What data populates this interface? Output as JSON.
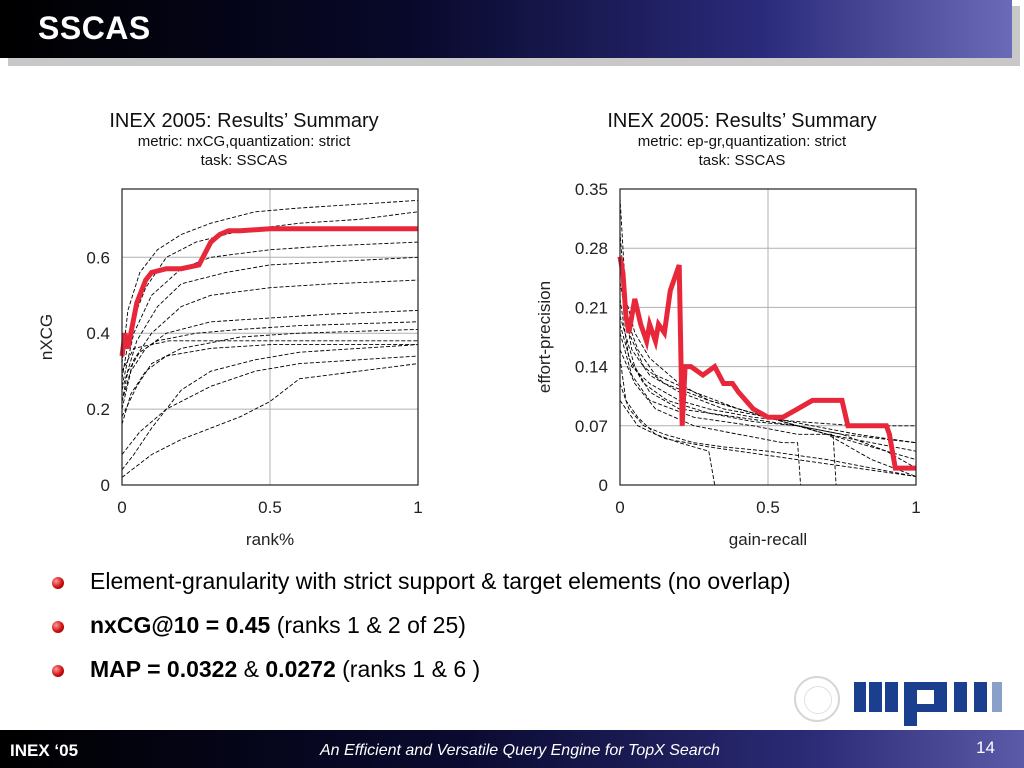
{
  "slide": {
    "title": "SSCAS",
    "footer_left": "INEX ‘05",
    "footer_center": "An Efficient and Versatile Query Engine for TopX Search",
    "page_number": "14"
  },
  "bullets": [
    {
      "parts": [
        {
          "text": "Element-granularity with strict support & target elements (no overlap)",
          "bold": false
        }
      ]
    },
    {
      "parts": [
        {
          "text": "nxCG@10 = 0.45",
          "bold": true
        },
        {
          "text": " (ranks 1 & 2 of 25)",
          "bold": false
        }
      ]
    },
    {
      "parts": [
        {
          "text": "MAP = 0.0322",
          "bold": true
        },
        {
          "text": " & ",
          "bold": false
        },
        {
          "text": "0.0272",
          "bold": true
        },
        {
          "text": " (ranks 1 & 6 )",
          "bold": false
        }
      ]
    }
  ],
  "logo": {
    "text": "mpi",
    "color": "#1a3f8f"
  },
  "colors": {
    "highlight": "#e8283a",
    "runs": "#000000",
    "grid": "#b0b0b0"
  },
  "chart_data": [
    {
      "type": "line",
      "title": "INEX 2005: Results’ Summary",
      "subtitle_1": "metric: nxCG,quantization: strict",
      "subtitle_2": "task: SSCAS",
      "xlabel": "rank%",
      "ylabel": "nXCG",
      "xlim": [
        0,
        1
      ],
      "ylim": [
        0,
        0.78
      ],
      "xticks": [
        0,
        0.5,
        1
      ],
      "xtick_labels": [
        "0",
        "0.5",
        "1"
      ],
      "yticks": [
        0,
        0.2,
        0.4,
        0.6
      ],
      "ytick_labels": [
        "0",
        "0.2",
        "0.4",
        "0.6"
      ],
      "grid": true,
      "highlight_series": {
        "x": [
          0,
          0.01,
          0.02,
          0.05,
          0.08,
          0.1,
          0.15,
          0.2,
          0.26,
          0.3,
          0.33,
          0.36,
          0.4,
          0.5,
          0.6,
          0.7,
          0.8,
          0.9,
          1.0
        ],
        "y": [
          0.34,
          0.4,
          0.36,
          0.48,
          0.54,
          0.56,
          0.57,
          0.57,
          0.58,
          0.64,
          0.66,
          0.67,
          0.67,
          0.675,
          0.675,
          0.675,
          0.675,
          0.675,
          0.675
        ]
      },
      "series": [
        {
          "x": [
            0,
            0.02,
            0.06,
            0.12,
            0.2,
            0.3,
            0.45,
            0.6,
            0.8,
            1.0
          ],
          "y": [
            0.32,
            0.46,
            0.56,
            0.62,
            0.66,
            0.69,
            0.72,
            0.73,
            0.74,
            0.75
          ]
        },
        {
          "x": [
            0,
            0.03,
            0.08,
            0.15,
            0.25,
            0.4,
            0.6,
            0.8,
            1.0
          ],
          "y": [
            0.28,
            0.42,
            0.52,
            0.6,
            0.64,
            0.67,
            0.69,
            0.7,
            0.72
          ]
        },
        {
          "x": [
            0,
            0.04,
            0.1,
            0.2,
            0.3,
            0.5,
            0.7,
            1.0
          ],
          "y": [
            0.26,
            0.4,
            0.5,
            0.57,
            0.6,
            0.62,
            0.63,
            0.64
          ]
        },
        {
          "x": [
            0,
            0.05,
            0.12,
            0.2,
            0.35,
            0.5,
            0.75,
            1.0
          ],
          "y": [
            0.25,
            0.38,
            0.47,
            0.53,
            0.56,
            0.58,
            0.59,
            0.6
          ]
        },
        {
          "x": [
            0,
            0.04,
            0.1,
            0.2,
            0.3,
            0.5,
            0.7,
            1.0
          ],
          "y": [
            0.22,
            0.33,
            0.4,
            0.47,
            0.5,
            0.52,
            0.53,
            0.54
          ]
        },
        {
          "x": [
            0,
            0.03,
            0.08,
            0.15,
            0.3,
            0.5,
            0.7,
            1.0
          ],
          "y": [
            0.2,
            0.3,
            0.36,
            0.4,
            0.43,
            0.44,
            0.45,
            0.46
          ]
        },
        {
          "x": [
            0,
            0.02,
            0.06,
            0.12,
            0.25,
            0.4,
            0.6,
            1.0
          ],
          "y": [
            0.22,
            0.3,
            0.35,
            0.38,
            0.4,
            0.41,
            0.42,
            0.43
          ]
        },
        {
          "x": [
            0,
            0.05,
            0.1,
            0.2,
            0.4,
            0.6,
            1.0
          ],
          "y": [
            0.18,
            0.26,
            0.32,
            0.36,
            0.39,
            0.4,
            0.41
          ]
        },
        {
          "x": [
            0,
            0.04,
            0.1,
            0.16,
            0.3,
            0.5,
            0.8,
            1.0
          ],
          "y": [
            0.3,
            0.36,
            0.37,
            0.38,
            0.38,
            0.38,
            0.38,
            0.38
          ]
        },
        {
          "x": [
            0,
            0.03,
            0.08,
            0.15,
            0.3,
            0.5,
            0.7,
            1.0
          ],
          "y": [
            0.16,
            0.24,
            0.3,
            0.34,
            0.36,
            0.37,
            0.37,
            0.37
          ]
        },
        {
          "x": [
            0,
            0.04,
            0.1,
            0.2,
            0.3,
            0.45,
            0.6,
            0.8,
            1.0
          ],
          "y": [
            0.04,
            0.08,
            0.15,
            0.25,
            0.3,
            0.33,
            0.35,
            0.36,
            0.37
          ]
        },
        {
          "x": [
            0,
            0.05,
            0.1,
            0.2,
            0.3,
            0.4,
            0.5,
            0.6,
            0.8,
            1.0
          ],
          "y": [
            0.02,
            0.05,
            0.08,
            0.12,
            0.15,
            0.18,
            0.22,
            0.28,
            0.3,
            0.32
          ]
        },
        {
          "x": [
            0,
            0.06,
            0.15,
            0.3,
            0.45,
            0.6,
            0.8,
            1.0
          ],
          "y": [
            0.08,
            0.14,
            0.2,
            0.26,
            0.3,
            0.32,
            0.33,
            0.34
          ]
        }
      ]
    },
    {
      "type": "line",
      "title": "INEX 2005: Results’ Summary",
      "subtitle_1": "metric: ep-gr,quantization: strict",
      "subtitle_2": "task: SSCAS",
      "xlabel": "gain-recall",
      "ylabel": "effort-precision",
      "xlim": [
        0,
        1
      ],
      "ylim": [
        0,
        0.35
      ],
      "xticks": [
        0,
        0.5,
        1
      ],
      "xtick_labels": [
        "0",
        "0.5",
        "1"
      ],
      "yticks": [
        0,
        0.07,
        0.14,
        0.21,
        0.28,
        0.35
      ],
      "ytick_labels": [
        "0",
        "0.07",
        "0.14",
        "0.21",
        "0.28",
        "0.35"
      ],
      "grid": true,
      "highlight_series": {
        "x": [
          0,
          0.01,
          0.02,
          0.03,
          0.05,
          0.07,
          0.09,
          0.1,
          0.12,
          0.13,
          0.15,
          0.17,
          0.19,
          0.2,
          0.21,
          0.22,
          0.24,
          0.28,
          0.32,
          0.35,
          0.38,
          0.4,
          0.45,
          0.5,
          0.55,
          0.6,
          0.65,
          0.7,
          0.75,
          0.77,
          0.8,
          0.85,
          0.9,
          0.91,
          0.93,
          0.95,
          1.0
        ],
        "y": [
          0.27,
          0.25,
          0.2,
          0.18,
          0.22,
          0.19,
          0.17,
          0.19,
          0.17,
          0.19,
          0.18,
          0.23,
          0.25,
          0.26,
          0.07,
          0.14,
          0.14,
          0.13,
          0.14,
          0.12,
          0.12,
          0.11,
          0.09,
          0.08,
          0.08,
          0.09,
          0.1,
          0.1,
          0.1,
          0.07,
          0.07,
          0.07,
          0.07,
          0.06,
          0.02,
          0.02,
          0.02
        ]
      },
      "series": [
        {
          "x": [
            0,
            0.02,
            0.05,
            0.1,
            0.2,
            0.3,
            0.5,
            0.7,
            1.0
          ],
          "y": [
            0.34,
            0.22,
            0.18,
            0.15,
            0.12,
            0.1,
            0.08,
            0.06,
            0.04
          ]
        },
        {
          "x": [
            0,
            0.02,
            0.06,
            0.12,
            0.25,
            0.4,
            0.6,
            0.8,
            1.0
          ],
          "y": [
            0.3,
            0.2,
            0.16,
            0.13,
            0.11,
            0.09,
            0.07,
            0.05,
            0.03
          ]
        },
        {
          "x": [
            0,
            0.03,
            0.08,
            0.15,
            0.3,
            0.5,
            0.7,
            0.85,
            1.0
          ],
          "y": [
            0.26,
            0.18,
            0.14,
            0.12,
            0.1,
            0.08,
            0.06,
            0.03,
            0.01
          ]
        },
        {
          "x": [
            0,
            0.04,
            0.1,
            0.2,
            0.35,
            0.5,
            0.65,
            0.8,
            1.0
          ],
          "y": [
            0.24,
            0.16,
            0.13,
            0.11,
            0.09,
            0.08,
            0.07,
            0.06,
            0.05
          ]
        },
        {
          "x": [
            0,
            0.03,
            0.08,
            0.16,
            0.3,
            0.45,
            0.6,
            0.75,
            1.0
          ],
          "y": [
            0.22,
            0.15,
            0.12,
            0.1,
            0.085,
            0.075,
            0.07,
            0.06,
            0.05
          ]
        },
        {
          "x": [
            0,
            0.05,
            0.1,
            0.2,
            0.4,
            0.6,
            0.75,
            0.9,
            1.0
          ],
          "y": [
            0.2,
            0.14,
            0.11,
            0.09,
            0.08,
            0.07,
            0.06,
            0.04,
            0.02
          ]
        },
        {
          "x": [
            0,
            0.04,
            0.1,
            0.25,
            0.45,
            0.6,
            0.72,
            0.73,
            1.0
          ],
          "y": [
            0.18,
            0.13,
            0.1,
            0.08,
            0.07,
            0.06,
            0.06,
            0.0,
            0.0
          ]
        },
        {
          "x": [
            0,
            0.05,
            0.12,
            0.25,
            0.4,
            0.55,
            0.6,
            0.61,
            1.0
          ],
          "y": [
            0.16,
            0.12,
            0.09,
            0.07,
            0.06,
            0.05,
            0.05,
            0.0,
            0.0
          ]
        },
        {
          "x": [
            0,
            0.02,
            0.06,
            0.12,
            0.2,
            0.3,
            0.32,
            1.0
          ],
          "y": [
            0.15,
            0.1,
            0.08,
            0.06,
            0.05,
            0.04,
            0.0,
            0.0
          ]
        },
        {
          "x": [
            0,
            0.03,
            0.08,
            0.15,
            0.25,
            0.35,
            0.5,
            0.7,
            0.85,
            1.0
          ],
          "y": [
            0.12,
            0.09,
            0.07,
            0.06,
            0.05,
            0.045,
            0.04,
            0.03,
            0.02,
            0.01
          ]
        },
        {
          "x": [
            0,
            0.06,
            0.15,
            0.3,
            0.5,
            0.7,
            0.9,
            1.0
          ],
          "y": [
            0.1,
            0.07,
            0.055,
            0.045,
            0.035,
            0.025,
            0.015,
            0.01
          ]
        },
        {
          "x": [
            0,
            0.04,
            0.1,
            0.2,
            0.3,
            0.45,
            0.6,
            0.8,
            0.95,
            1.0
          ],
          "y": [
            0.19,
            0.14,
            0.12,
            0.1,
            0.09,
            0.08,
            0.075,
            0.07,
            0.07,
            0.07
          ]
        }
      ]
    }
  ]
}
